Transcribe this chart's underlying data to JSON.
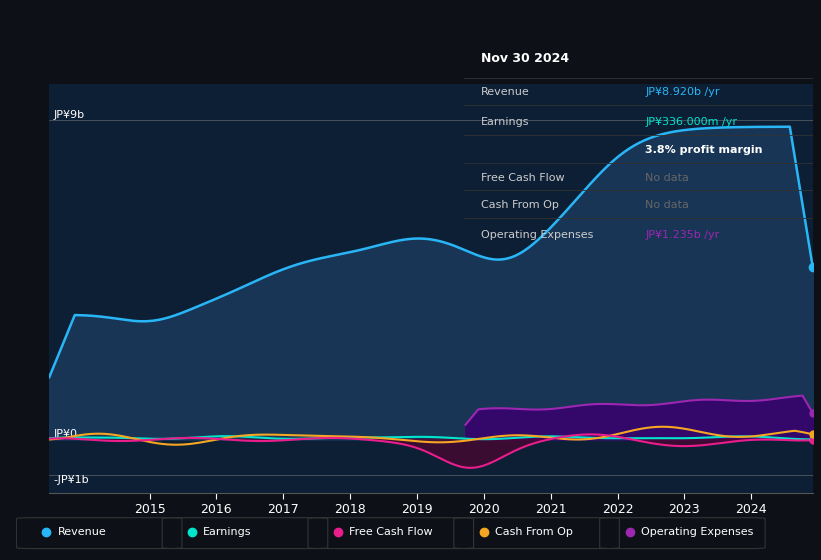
{
  "background_color": "#0d1117",
  "plot_bg_color": "#0d1f35",
  "ylabel_top": "JP¥9b",
  "ylabel_zero": "JP¥0",
  "ylabel_bottom": "-JP¥1b",
  "x_tick_years": [
    2015,
    2016,
    2017,
    2018,
    2019,
    2020,
    2021,
    2022,
    2023,
    2024
  ],
  "legend_items": [
    "Revenue",
    "Earnings",
    "Free Cash Flow",
    "Cash From Op",
    "Operating Expenses"
  ],
  "legend_colors": [
    "#29b6f6",
    "#00e5cc",
    "#e91e8c",
    "#f5a623",
    "#9c27b0"
  ],
  "revenue_color": "#29b6f6",
  "revenue_fill": "#1a3a5c",
  "earnings_color": "#00e5cc",
  "fcf_color": "#e91e8c",
  "cfo_color": "#f5a623",
  "opex_color": "#9c27b0",
  "opex_fill": "#3a006f"
}
